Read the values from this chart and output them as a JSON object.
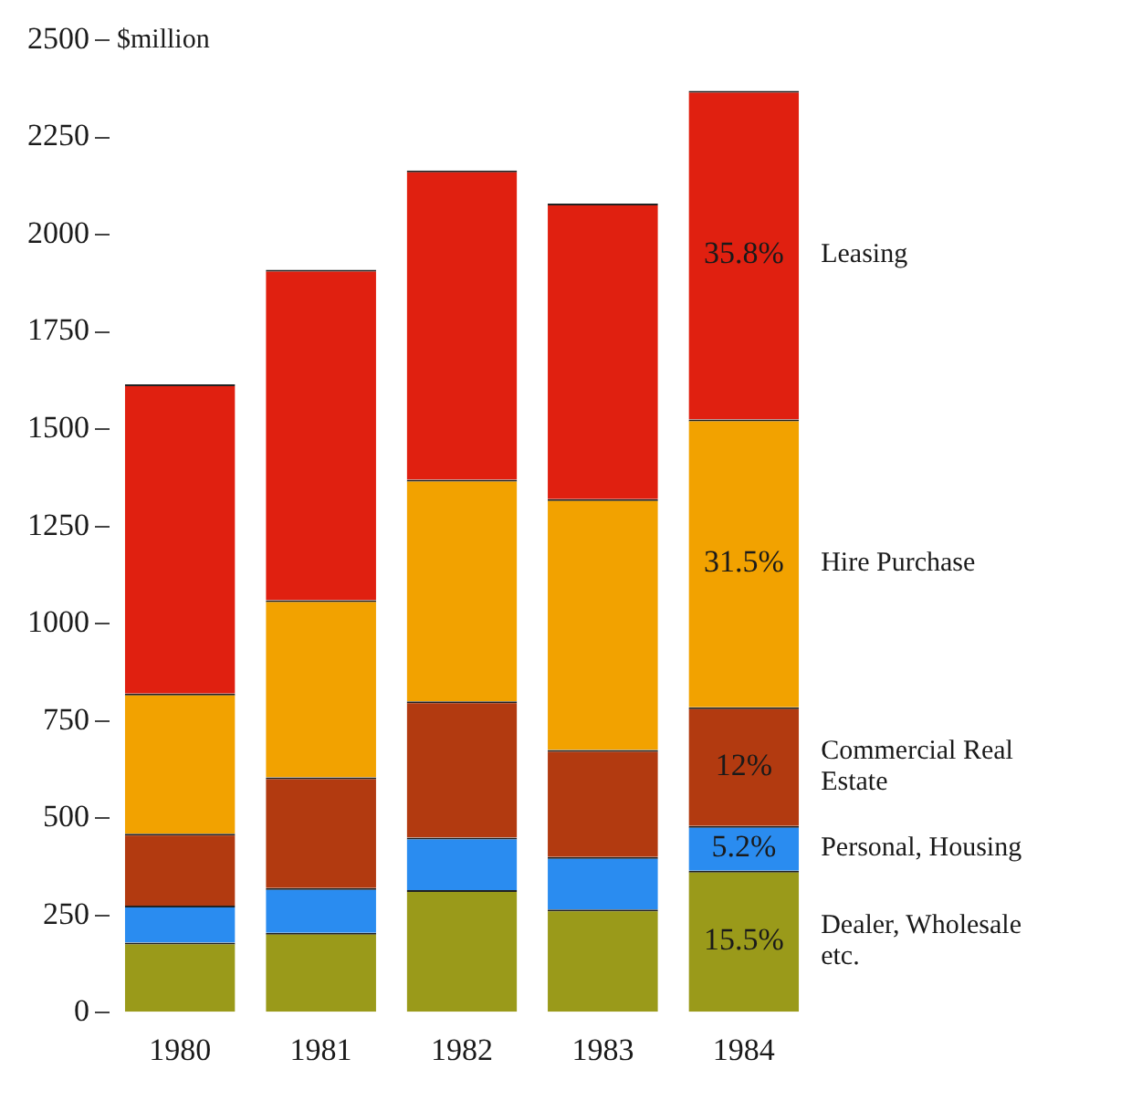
{
  "chart_data": {
    "type": "bar",
    "stacked": true,
    "ylabel": "$million",
    "categories": [
      "1980",
      "1981",
      "1982",
      "1983",
      "1984"
    ],
    "ylim": [
      0,
      2500
    ],
    "yticks": [
      0,
      250,
      500,
      750,
      1000,
      1250,
      1500,
      1750,
      2000,
      2250,
      2500
    ],
    "grid": false,
    "legend": false,
    "annotations": [
      "15.5%",
      "5.2%",
      "12%",
      "31.5%",
      "35.8%"
    ],
    "series": [
      {
        "name": "Dealer, Wholesale etc.",
        "color": "#9a9a1a",
        "values": [
          180,
          205,
          315,
          265,
          365
        ]
      },
      {
        "name": "Personal, Housing",
        "color": "#2a8cf0",
        "values": [
          95,
          115,
          135,
          135,
          115
        ]
      },
      {
        "name": "Commercial Real Estate",
        "color": "#b23a10",
        "values": [
          185,
          285,
          350,
          275,
          305
        ]
      },
      {
        "name": "Hire Purchase",
        "color": "#f2a200",
        "values": [
          360,
          455,
          570,
          645,
          740
        ]
      },
      {
        "name": "Leasing",
        "color": "#e02010",
        "values": [
          795,
          850,
          795,
          760,
          845
        ]
      }
    ]
  }
}
